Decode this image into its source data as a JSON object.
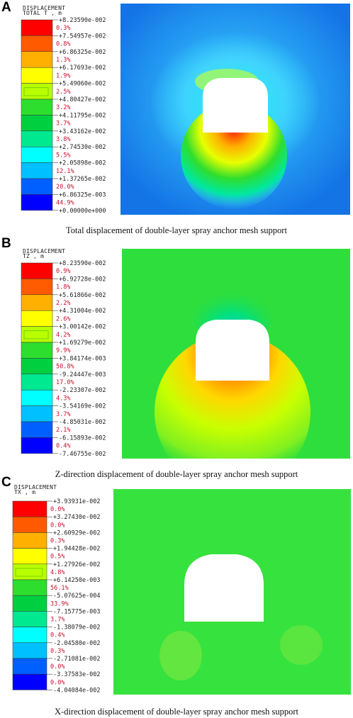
{
  "panels": [
    {
      "letter": "A",
      "legend_title_1": "DISPLACEMENT",
      "legend_title_2": "TOTAL T , m",
      "values": [
        "+8.23590e-002",
        "+7.54957e-002",
        "+6.86325e-002",
        "+6.17693e-002",
        "+5.49060e-002",
        "+4.80427e-002",
        "+4.11795e-002",
        "+3.43162e-002",
        "+2.74530e-002",
        "+2.05898e-002",
        "+1.37265e-002",
        "+6.86325e-003",
        "+0.00000e+000"
      ],
      "percents": [
        "0.3%",
        "0.8%",
        "1.3%",
        "1.9%",
        "2.5%",
        "3.2%",
        "3.7%",
        "3.8%",
        "5.5%",
        "12.1%",
        "20.0%",
        "44.9%"
      ],
      "caption": "Total displacement of double-layer spray anchor mesh support",
      "field_bg": "#1a8cf0",
      "field_center": "#5ad0ff"
    },
    {
      "letter": "B",
      "legend_title_1": "DISPLACEMENT",
      "legend_title_2": "TZ , m",
      "values": [
        "+8.23590e-002",
        "+6.92728e-002",
        "+5.61866e-002",
        "+4.31004e-002",
        "+3.00142e-002",
        "+1.69279e-002",
        "+3.84174e-003",
        "-9.24447e-003",
        "-2.23307e-002",
        "-3.54169e-002",
        "-4.85031e-002",
        "-6.15893e-002",
        "-7.46755e-002"
      ],
      "percents": [
        "0.9%",
        "1.8%",
        "2.2%",
        "2.6%",
        "4.2%",
        "9.9%",
        "50.8%",
        "17.0%",
        "4.3%",
        "3.7%",
        "2.1%",
        "0.4%"
      ],
      "caption": "Z-direction displacement of double-layer spray anchor mesh support",
      "field_bg": "#2ede3c",
      "field_center": "#60ea50"
    },
    {
      "letter": "C",
      "legend_title_1": "DISPLACEMENT",
      "legend_title_2": "TX , m",
      "values": [
        "+3.93931e-002",
        "+3.27430e-002",
        "+2.60929e-002",
        "+1.94428e-002",
        "+1.27926e-002",
        "+6.14250e-003",
        "-5.07625e-004",
        "-7.15775e-003",
        "-1.38079e-002",
        "-2.04580e-002",
        "-2.71081e-002",
        "-3.37583e-002",
        "-4.04084e-002"
      ],
      "percents": [
        "0.0%",
        "0.0%",
        "0.3%",
        "0.5%",
        "4.8%",
        "56.1%",
        "33.9%",
        "3.7%",
        "0.4%",
        "0.3%",
        "0.0%",
        "0.0%"
      ],
      "caption": "X-direction displacement of double-layer spray anchor mesh support",
      "field_bg": "#2ede3c",
      "field_center": "#3ae440"
    }
  ],
  "colors": [
    "#ff0000",
    "#ff5a00",
    "#ffb000",
    "#ffff00",
    "#b8ff00",
    "#2ede2e",
    "#00d040",
    "#00e890",
    "#00ffff",
    "#00c0ff",
    "#0060ff",
    "#0000ff"
  ]
}
